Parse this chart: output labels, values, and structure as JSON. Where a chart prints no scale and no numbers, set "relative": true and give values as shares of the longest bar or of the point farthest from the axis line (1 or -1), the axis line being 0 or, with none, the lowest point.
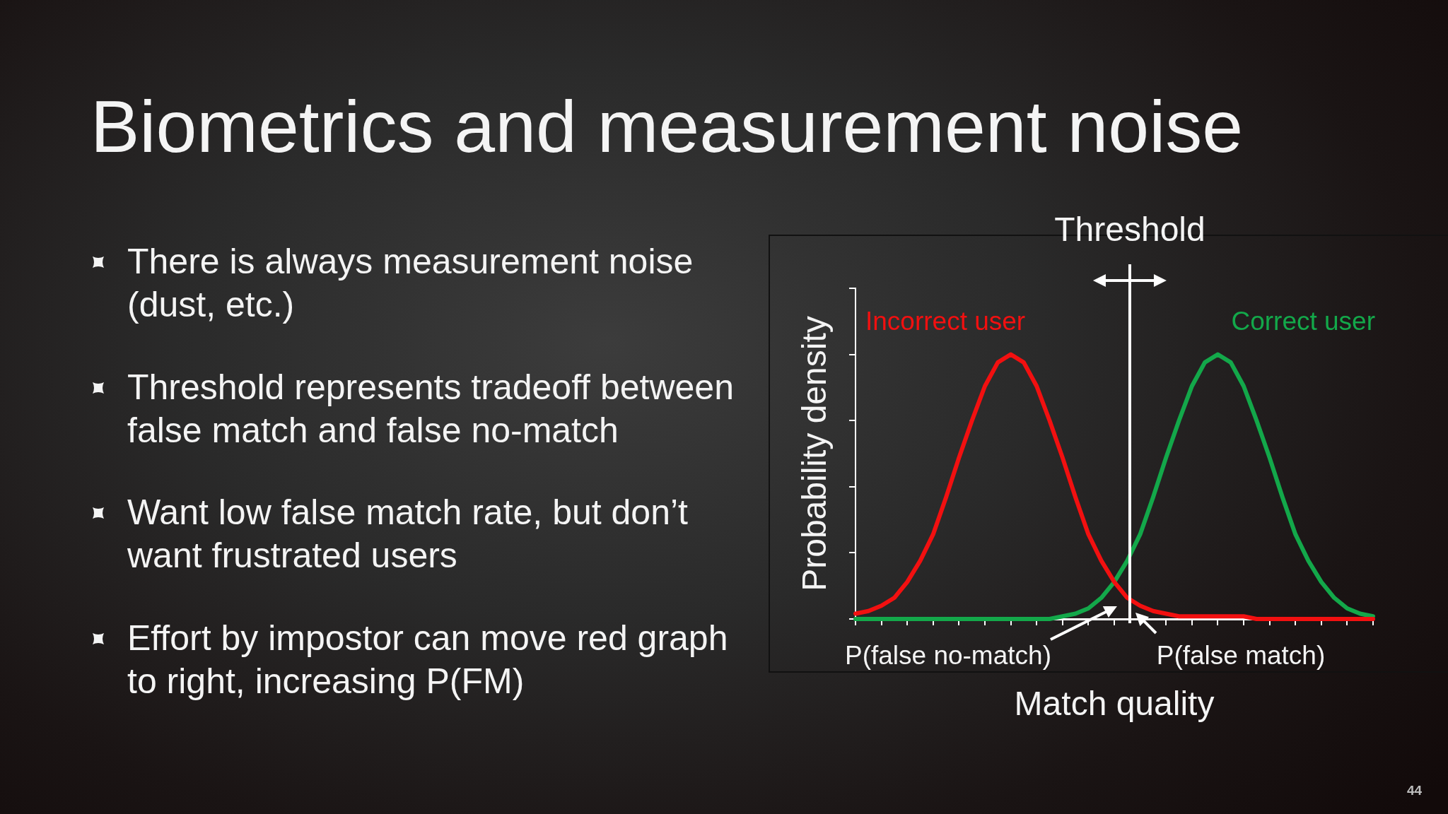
{
  "chart_data": {
    "type": "line",
    "title": "Biometrics and measurement noise",
    "xlabel": "Match quality",
    "ylabel": "Probability density",
    "categories": [
      null,
      null,
      null,
      null,
      null,
      null,
      null,
      null,
      null,
      null,
      null,
      null,
      null,
      null,
      null,
      null,
      null,
      null,
      null,
      null,
      null,
      null,
      null,
      null,
      null,
      null,
      null,
      null,
      null,
      null,
      null,
      null,
      null,
      null,
      null,
      null,
      null,
      null,
      null,
      null,
      null
    ],
    "relative": true,
    "marker": "none",
    "series": [
      {
        "name": "Incorrect user",
        "color": "#f21010",
        "values": [
          0.02,
          0.03,
          0.05,
          0.08,
          0.14,
          0.22,
          0.32,
          0.46,
          0.61,
          0.75,
          0.88,
          0.97,
          1,
          0.97,
          0.88,
          0.75,
          0.61,
          0.46,
          0.32,
          0.22,
          0.14,
          0.08,
          0.05,
          0.03,
          0.02,
          0.01,
          0.01,
          0.01,
          0.01,
          0.01,
          0.01,
          0,
          0,
          0,
          0,
          0,
          0,
          0,
          0,
          0,
          0
        ]
      },
      {
        "name": "Correct user",
        "color": "#13a84a",
        "values": [
          0,
          0,
          0,
          0,
          0,
          0,
          0,
          0,
          0,
          0,
          0,
          0,
          0,
          0,
          0,
          0,
          0.01,
          0.02,
          0.04,
          0.08,
          0.14,
          0.22,
          0.32,
          0.46,
          0.61,
          0.75,
          0.88,
          0.97,
          1,
          0.97,
          0.88,
          0.75,
          0.61,
          0.46,
          0.32,
          0.22,
          0.14,
          0.08,
          0.04,
          0.02,
          0.01
        ]
      }
    ],
    "annotations": [
      "There is always measurement noise (dust, etc.)",
      "Threshold represents tradeoff between false match and false no-match",
      "Want low false match rate, but don’t want frustrated users",
      "Effort by impostor can move red graph to right, increasing P(FM)",
      "Threshold",
      "P(false no-match)",
      "P(false match)",
      "44"
    ]
  }
}
